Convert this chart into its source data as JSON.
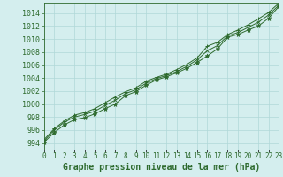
{
  "title": "Graphe pression niveau de la mer (hPa)",
  "xlabel_hours": [
    0,
    1,
    2,
    3,
    4,
    5,
    6,
    7,
    8,
    9,
    10,
    11,
    12,
    13,
    14,
    15,
    16,
    17,
    18,
    19,
    20,
    21,
    22,
    23
  ],
  "line1": [
    994.1,
    995.6,
    996.8,
    997.6,
    997.9,
    998.5,
    999.3,
    1000.0,
    1001.3,
    1001.9,
    1002.9,
    1003.7,
    1004.2,
    1004.8,
    1005.5,
    1006.4,
    1007.4,
    1008.5,
    1010.3,
    1010.7,
    1011.4,
    1012.0,
    1013.2,
    1015.0
  ],
  "line2": [
    994.5,
    996.2,
    997.4,
    998.3,
    998.7,
    999.3,
    1000.2,
    1001.1,
    1001.9,
    1002.5,
    1003.5,
    1004.1,
    1004.6,
    1005.3,
    1006.1,
    1007.1,
    1008.9,
    1009.5,
    1010.7,
    1011.4,
    1012.2,
    1013.1,
    1014.1,
    1015.5
  ],
  "line3": [
    994.3,
    996.0,
    997.2,
    998.0,
    998.4,
    998.9,
    999.8,
    1000.6,
    1001.6,
    1002.2,
    1003.2,
    1003.9,
    1004.4,
    1005.0,
    1005.8,
    1006.8,
    1008.2,
    1009.0,
    1010.5,
    1011.0,
    1011.8,
    1012.6,
    1013.7,
    1015.2
  ],
  "line_color": "#2d6a2d",
  "bg_color": "#d4eeee",
  "grid_color": "#b0d8d8",
  "ylim": [
    993.0,
    1015.6
  ],
  "yticks": [
    994,
    996,
    998,
    1000,
    1002,
    1004,
    1006,
    1008,
    1010,
    1012,
    1014
  ],
  "xlim": [
    0,
    23
  ],
  "title_fontsize": 7,
  "tick_fontsize": 6
}
